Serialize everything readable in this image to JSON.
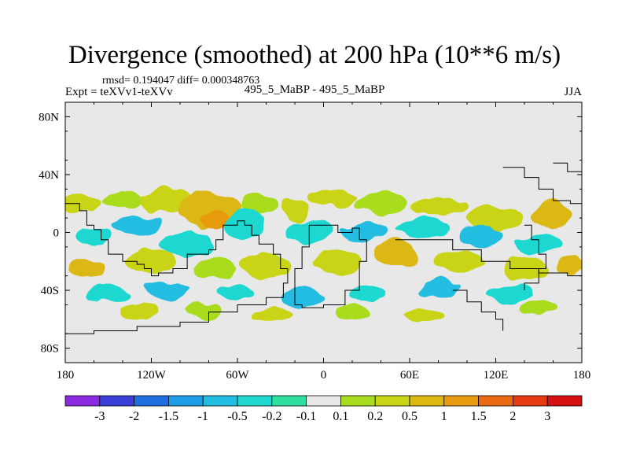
{
  "header": {
    "title": "Divergence (smoothed) at 200 hPa (10**6 m/s)",
    "stats": "rmsd= 0.194047 diff= 0.000348763",
    "experiment": "Expt = teXVv1-teXVv",
    "comparison": "495_5_MaBP - 495_5_MaBP",
    "season": "JJA"
  },
  "chart_data": {
    "type": "heatmap",
    "title": "Divergence (smoothed) at 200 hPa (10**6 m/s)",
    "projection": "cylindrical equidistant",
    "xlim": [
      -180,
      180
    ],
    "ylim": [
      -90,
      90
    ],
    "x_ticks": [
      {
        "value": -180,
        "label": "180"
      },
      {
        "value": -120,
        "label": "120W"
      },
      {
        "value": -60,
        "label": "60W"
      },
      {
        "value": 0,
        "label": "0"
      },
      {
        "value": 60,
        "label": "60E"
      },
      {
        "value": 120,
        "label": "120E"
      },
      {
        "value": 180,
        "label": "180"
      }
    ],
    "y_ticks": [
      {
        "value": 80,
        "label": "80N"
      },
      {
        "value": 40,
        "label": "40N"
      },
      {
        "value": 0,
        "label": "0"
      },
      {
        "value": -40,
        "label": "40S"
      },
      {
        "value": -80,
        "label": "80S"
      }
    ],
    "colorbar": {
      "labels": [
        "-3",
        "-2",
        "-1.5",
        "-1",
        "-0.5",
        "-0.2",
        "-0.1",
        "0.1",
        "0.2",
        "0.5",
        "1",
        "1.5",
        "2",
        "3"
      ],
      "colors": [
        "#8a2be2",
        "#3a3fd8",
        "#1f6fe0",
        "#1f9ee8",
        "#22bde0",
        "#1ed8d0",
        "#2ee0a0",
        "#e8e8e8",
        "#a8dc1e",
        "#c9d414",
        "#dcb812",
        "#e89a10",
        "#ea6a12",
        "#e63a10",
        "#d41010"
      ],
      "missing_color": "#e8e8e8"
    },
    "regions": [
      {
        "lon": -168,
        "lat": 20,
        "rlon": 14,
        "rlat": 7,
        "level": 9
      },
      {
        "lon": -140,
        "lat": 23,
        "rlon": 14,
        "rlat": 6,
        "level": 8
      },
      {
        "lon": -110,
        "lat": 22,
        "rlon": 18,
        "rlat": 9,
        "level": 9
      },
      {
        "lon": -80,
        "lat": 15,
        "rlon": 22,
        "rlat": 12,
        "level": 10
      },
      {
        "lon": -75,
        "lat": 8,
        "rlon": 10,
        "rlat": 6,
        "level": 11
      },
      {
        "lon": -45,
        "lat": 20,
        "rlon": 14,
        "rlat": 8,
        "level": 8
      },
      {
        "lon": -20,
        "lat": 15,
        "rlon": 10,
        "rlat": 8,
        "level": 9
      },
      {
        "lon": 5,
        "lat": 25,
        "rlon": 18,
        "rlat": 6,
        "level": 9
      },
      {
        "lon": 40,
        "lat": 20,
        "rlon": 18,
        "rlat": 7,
        "level": 8
      },
      {
        "lon": 80,
        "lat": 18,
        "rlon": 20,
        "rlat": 7,
        "level": 9
      },
      {
        "lon": 120,
        "lat": 10,
        "rlon": 20,
        "rlat": 8,
        "level": 9
      },
      {
        "lon": 160,
        "lat": 12,
        "rlon": 14,
        "rlat": 9,
        "level": 10
      },
      {
        "lon": -160,
        "lat": -3,
        "rlon": 12,
        "rlat": 6,
        "level": 5
      },
      {
        "lon": -130,
        "lat": 5,
        "rlon": 18,
        "rlat": 6,
        "level": 4
      },
      {
        "lon": -95,
        "lat": -8,
        "rlon": 20,
        "rlat": 8,
        "level": 5
      },
      {
        "lon": -55,
        "lat": 5,
        "rlon": 14,
        "rlat": 10,
        "level": 5
      },
      {
        "lon": -10,
        "lat": 0,
        "rlon": 16,
        "rlat": 8,
        "level": 5
      },
      {
        "lon": 30,
        "lat": 0,
        "rlon": 18,
        "rlat": 6,
        "level": 4
      },
      {
        "lon": 70,
        "lat": 3,
        "rlon": 18,
        "rlat": 7,
        "level": 5
      },
      {
        "lon": 110,
        "lat": -2,
        "rlon": 16,
        "rlat": 7,
        "level": 4
      },
      {
        "lon": 150,
        "lat": -8,
        "rlon": 16,
        "rlat": 7,
        "level": 5
      },
      {
        "lon": -165,
        "lat": -25,
        "rlon": 12,
        "rlat": 8,
        "level": 10
      },
      {
        "lon": -120,
        "lat": -20,
        "rlon": 18,
        "rlat": 8,
        "level": 9
      },
      {
        "lon": -75,
        "lat": -25,
        "rlon": 14,
        "rlat": 8,
        "level": 8
      },
      {
        "lon": -40,
        "lat": -22,
        "rlon": 18,
        "rlat": 8,
        "level": 9
      },
      {
        "lon": 10,
        "lat": -20,
        "rlon": 18,
        "rlat": 8,
        "level": 9
      },
      {
        "lon": 50,
        "lat": -15,
        "rlon": 16,
        "rlat": 9,
        "level": 10
      },
      {
        "lon": 95,
        "lat": -20,
        "rlon": 18,
        "rlat": 7,
        "level": 9
      },
      {
        "lon": 140,
        "lat": -25,
        "rlon": 16,
        "rlat": 8,
        "level": 9
      },
      {
        "lon": 172,
        "lat": -22,
        "rlon": 10,
        "rlat": 7,
        "level": 10
      },
      {
        "lon": -150,
        "lat": -42,
        "rlon": 14,
        "rlat": 6,
        "level": 5
      },
      {
        "lon": -110,
        "lat": -40,
        "rlon": 16,
        "rlat": 6,
        "level": 4
      },
      {
        "lon": -60,
        "lat": -42,
        "rlon": 14,
        "rlat": 6,
        "level": 5
      },
      {
        "lon": -15,
        "lat": -45,
        "rlon": 16,
        "rlat": 6,
        "level": 4
      },
      {
        "lon": 30,
        "lat": -42,
        "rlon": 14,
        "rlat": 6,
        "level": 5
      },
      {
        "lon": 80,
        "lat": -40,
        "rlon": 14,
        "rlat": 6,
        "level": 4
      },
      {
        "lon": 130,
        "lat": -42,
        "rlon": 16,
        "rlat": 6,
        "level": 5
      },
      {
        "lon": -130,
        "lat": -55,
        "rlon": 14,
        "rlat": 5,
        "level": 9
      },
      {
        "lon": -85,
        "lat": -55,
        "rlon": 12,
        "rlat": 5,
        "level": 8
      },
      {
        "lon": -35,
        "lat": -57,
        "rlon": 14,
        "rlat": 5,
        "level": 9
      },
      {
        "lon": 20,
        "lat": -55,
        "rlon": 12,
        "rlat": 5,
        "level": 8
      },
      {
        "lon": 70,
        "lat": -57,
        "rlon": 14,
        "rlat": 5,
        "level": 9
      },
      {
        "lon": 150,
        "lat": -52,
        "rlon": 14,
        "rlat": 5,
        "level": 8
      }
    ],
    "coastline": [
      [
        [
          -180,
          20
        ],
        [
          -170,
          15
        ],
        [
          -165,
          5
        ],
        [
          -160,
          2
        ],
        [
          -155,
          -5
        ],
        [
          -150,
          -15
        ],
        [
          -140,
          -20
        ],
        [
          -130,
          -22
        ],
        [
          -125,
          -25
        ],
        [
          -120,
          -30
        ],
        [
          -115,
          -28
        ],
        [
          -105,
          -25
        ],
        [
          -95,
          -15
        ],
        [
          -80,
          -12
        ],
        [
          -75,
          -5
        ],
        [
          -70,
          5
        ],
        [
          -60,
          8
        ],
        [
          -55,
          5
        ],
        [
          -50,
          -2
        ],
        [
          -45,
          -8
        ],
        [
          -35,
          -15
        ],
        [
          -30,
          -25
        ],
        [
          -25,
          -35
        ],
        [
          -28,
          -45
        ],
        [
          -40,
          -50
        ],
        [
          -60,
          -55
        ],
        [
          -80,
          -62
        ],
        [
          -100,
          -65
        ],
        [
          -130,
          -68
        ],
        [
          -160,
          -70
        ],
        [
          -180,
          -70
        ]
      ],
      [
        [
          -10,
          5
        ],
        [
          0,
          5
        ],
        [
          10,
          0
        ],
        [
          20,
          3
        ],
        [
          25,
          -5
        ],
        [
          30,
          -20
        ],
        [
          25,
          -40
        ],
        [
          15,
          -50
        ],
        [
          0,
          -52
        ],
        [
          -15,
          -50
        ],
        [
          -20,
          -40
        ],
        [
          -20,
          -25
        ],
        [
          -15,
          -10
        ],
        [
          -10,
          5
        ]
      ],
      [
        [
          50,
          -5
        ],
        [
          70,
          -5
        ],
        [
          90,
          -12
        ],
        [
          110,
          -20
        ],
        [
          130,
          -25
        ],
        [
          150,
          -28
        ],
        [
          170,
          -30
        ],
        [
          180,
          -32
        ]
      ],
      [
        [
          90,
          -40
        ],
        [
          100,
          -48
        ],
        [
          110,
          -55
        ],
        [
          120,
          -60
        ],
        [
          125,
          -68
        ]
      ],
      [
        [
          125,
          45
        ],
        [
          135,
          45
        ],
        [
          140,
          38
        ],
        [
          150,
          30
        ],
        [
          160,
          22
        ],
        [
          172,
          20
        ],
        [
          180,
          25
        ]
      ],
      [
        [
          140,
          5
        ],
        [
          145,
          -5
        ],
        [
          150,
          -15
        ],
        [
          155,
          -25
        ],
        [
          150,
          -35
        ],
        [
          140,
          -40
        ]
      ],
      [
        [
          160,
          48
        ],
        [
          170,
          42
        ],
        [
          180,
          45
        ]
      ]
    ]
  }
}
